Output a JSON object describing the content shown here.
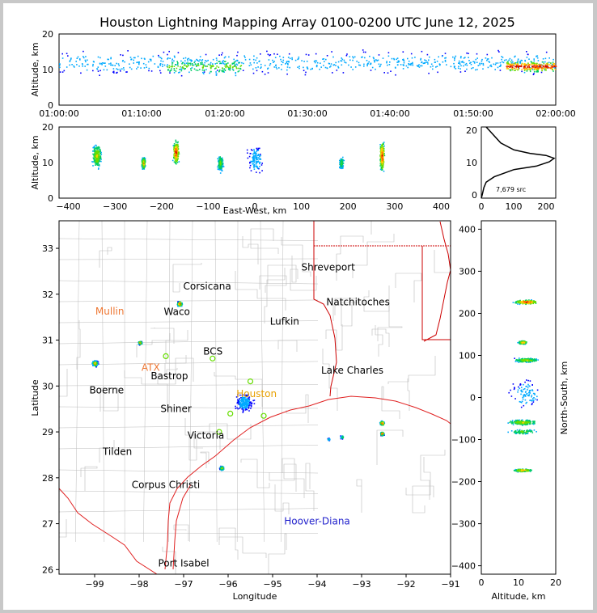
{
  "title": "Houston Lightning Mapping Array 0100-0200 UTC June 12, 2025",
  "colors": {
    "density": [
      "#0000ff",
      "#00aaff",
      "#00cc66",
      "#66dd00",
      "#ffcc00",
      "#ff6600",
      "#cc0000"
    ],
    "coast": "#e02020",
    "county": "#bbbbbb",
    "state": "#cc0000",
    "sensor": "#66dd00"
  },
  "panels": {
    "time_height": {
      "ylabel": "Altitude, km",
      "yticks": [
        "0",
        "10",
        "20"
      ],
      "xticks": [
        "01:00:00",
        "01:10:00",
        "01:20:00",
        "01:30:00",
        "01:40:00",
        "01:50:00",
        "02:00:00"
      ]
    },
    "ew_height": {
      "ylabel": "Altitude, km",
      "xlabel": "East-West, km",
      "yticks": [
        "0",
        "10",
        "20"
      ],
      "xticks": [
        "−400",
        "−300",
        "−200",
        "−100",
        "0",
        "100",
        "200",
        "300",
        "400"
      ]
    },
    "alt_hist": {
      "yticks": [
        "0",
        "10",
        "20"
      ],
      "xticks": [
        "0",
        "100",
        "200"
      ],
      "annotation": "7,679 src"
    },
    "plan": {
      "xlabel": "Longitude",
      "ylabel": "Latitude",
      "xticks": [
        "−99",
        "−98",
        "−97",
        "−96",
        "−95",
        "−94",
        "−93",
        "−92",
        "−91"
      ],
      "yticks": [
        "26",
        "27",
        "28",
        "29",
        "30",
        "31",
        "32",
        "33"
      ]
    },
    "ns_height": {
      "xlabel": "Altitude, km",
      "ylabel": "North-South, km",
      "xticks": [
        "0",
        "10",
        "20"
      ],
      "yticks": [
        "−400",
        "−300",
        "−200",
        "−100",
        "0",
        "100",
        "200",
        "300",
        "400"
      ]
    }
  },
  "cities": [
    {
      "name": "Shreveport",
      "lon": -93.75,
      "lat": 32.52,
      "color": "#000000"
    },
    {
      "name": "Corsicana",
      "lon": -96.47,
      "lat": 32.1,
      "color": "#000000"
    },
    {
      "name": "Natchitoches",
      "lon": -93.08,
      "lat": 31.76,
      "color": "#000000"
    },
    {
      "name": "Mullin",
      "lon": -98.66,
      "lat": 31.56,
      "color": "#ee7733"
    },
    {
      "name": "Waco",
      "lon": -97.15,
      "lat": 31.55,
      "color": "#000000"
    },
    {
      "name": "Lufkin",
      "lon": -94.73,
      "lat": 31.34,
      "color": "#000000"
    },
    {
      "name": "BCS",
      "lon": -96.34,
      "lat": 30.68,
      "color": "#000000"
    },
    {
      "name": "ATX",
      "lon": -97.74,
      "lat": 30.33,
      "color": "#ee7733"
    },
    {
      "name": "Bastrop",
      "lon": -97.32,
      "lat": 30.15,
      "color": "#000000"
    },
    {
      "name": "Lake Charles",
      "lon": -93.21,
      "lat": 30.27,
      "color": "#000000"
    },
    {
      "name": "Boerne",
      "lon": -98.73,
      "lat": 29.84,
      "color": "#000000"
    },
    {
      "name": "Houston",
      "lon": -95.36,
      "lat": 29.76,
      "color": "#e8a000"
    },
    {
      "name": "Shiner",
      "lon": -97.17,
      "lat": 29.43,
      "color": "#000000"
    },
    {
      "name": "Victoria",
      "lon": -96.5,
      "lat": 28.85,
      "color": "#000000"
    },
    {
      "name": "Tilden",
      "lon": -98.49,
      "lat": 28.5,
      "color": "#000000"
    },
    {
      "name": "Corpus Christi",
      "lon": -97.4,
      "lat": 27.78,
      "color": "#000000"
    },
    {
      "name": "Hoover-Diana",
      "lon": -94.0,
      "lat": 26.98,
      "color": "#2222cc"
    },
    {
      "name": "Port Isabel",
      "lon": -97.0,
      "lat": 26.07,
      "color": "#000000"
    }
  ],
  "chart_data": [
    {
      "type": "scatter",
      "panel": "time_height",
      "xlabel": "",
      "ylabel": "Altitude, km",
      "xlim": [
        "01:00:00",
        "02:00:00"
      ],
      "ylim": [
        0,
        20
      ],
      "clusters": [
        {
          "t_min": 0,
          "t_max": 60,
          "alt_center": 12,
          "alt_spread": 4,
          "intensity": 1
        },
        {
          "t_min": 13,
          "t_max": 22,
          "alt_center": 11,
          "alt_spread": 3,
          "intensity": 3
        },
        {
          "t_min": 54,
          "t_max": 60,
          "alt_center": 11,
          "alt_spread": 2,
          "intensity": 6
        }
      ]
    },
    {
      "type": "scatter",
      "panel": "ew_height",
      "xlabel": "East-West, km",
      "ylabel": "Altitude, km",
      "xlim": [
        -420,
        420
      ],
      "ylim": [
        0,
        20
      ],
      "clusters": [
        {
          "x": -340,
          "x_spread": 12,
          "alt_center": 12,
          "alt_spread": 4,
          "intensity": 4
        },
        {
          "x": -240,
          "x_spread": 5,
          "alt_center": 10,
          "alt_spread": 2,
          "intensity": 5
        },
        {
          "x": -170,
          "x_spread": 8,
          "alt_center": 13,
          "alt_spread": 4,
          "intensity": 6
        },
        {
          "x": -75,
          "x_spread": 8,
          "alt_center": 10,
          "alt_spread": 3,
          "intensity": 3
        },
        {
          "x": 0,
          "x_spread": 20,
          "alt_center": 11,
          "alt_spread": 5,
          "intensity": 1
        },
        {
          "x": 185,
          "x_spread": 6,
          "alt_center": 10,
          "alt_spread": 2,
          "intensity": 3
        },
        {
          "x": 272,
          "x_spread": 6,
          "alt_center": 12,
          "alt_spread": 5,
          "intensity": 6
        }
      ]
    },
    {
      "type": "line",
      "panel": "alt_hist",
      "xlim": [
        0,
        230
      ],
      "ylim": [
        0,
        20
      ],
      "points": [
        [
          0,
          0
        ],
        [
          3,
          1
        ],
        [
          8,
          3
        ],
        [
          15,
          4.5
        ],
        [
          40,
          6
        ],
        [
          100,
          8
        ],
        [
          170,
          9
        ],
        [
          210,
          10.2
        ],
        [
          225,
          11.2
        ],
        [
          200,
          12
        ],
        [
          150,
          12.6
        ],
        [
          100,
          13.6
        ],
        [
          60,
          15.5
        ],
        [
          40,
          17.5
        ],
        [
          25,
          19
        ],
        [
          15,
          20
        ]
      ],
      "annotation": "7,679 src"
    },
    {
      "type": "scatter",
      "panel": "plan",
      "xlabel": "Longitude",
      "ylabel": "Latitude",
      "xlim": [
        -99.8,
        -91
      ],
      "ylim": [
        25.9,
        33.6
      ],
      "clusters": [
        {
          "lon": -97.1,
          "lat": 31.8,
          "spread": 0.07,
          "intensity": 6
        },
        {
          "lon": -97.99,
          "lat": 30.95,
          "spread": 0.05,
          "intensity": 5
        },
        {
          "lon": -99.0,
          "lat": 30.5,
          "spread": 0.08,
          "intensity": 5
        },
        {
          "lon": -95.65,
          "lat": 29.65,
          "spread": 0.25,
          "intensity": 1
        },
        {
          "lon": -96.15,
          "lat": 28.22,
          "spread": 0.06,
          "intensity": 4
        },
        {
          "lon": -92.55,
          "lat": 29.2,
          "spread": 0.06,
          "intensity": 6
        },
        {
          "lon": -92.55,
          "lat": 28.97,
          "spread": 0.05,
          "intensity": 6
        },
        {
          "lon": -93.45,
          "lat": 28.9,
          "spread": 0.05,
          "intensity": 3
        },
        {
          "lon": -93.75,
          "lat": 28.85,
          "spread": 0.03,
          "intensity": 2
        }
      ]
    },
    {
      "type": "scatter",
      "panel": "ns_height",
      "xlabel": "Altitude, km",
      "ylabel": "North-South, km",
      "xlim": [
        0,
        20
      ],
      "ylim": [
        -420,
        420
      ],
      "clusters": [
        {
          "y": 228,
          "y_spread": 6,
          "alt_center": 12,
          "alt_spread": 4,
          "intensity": 6
        },
        {
          "y": 132,
          "y_spread": 5,
          "alt_center": 11,
          "alt_spread": 1.5,
          "intensity": 5
        },
        {
          "y": 90,
          "y_spread": 6,
          "alt_center": 12,
          "alt_spread": 4,
          "intensity": 4
        },
        {
          "y": 10,
          "y_spread": 40,
          "alt_center": 12,
          "alt_spread": 5,
          "intensity": 1
        },
        {
          "y": -58,
          "y_spread": 8,
          "alt_center": 11,
          "alt_spread": 5,
          "intensity": 4
        },
        {
          "y": -80,
          "y_spread": 8,
          "alt_center": 11,
          "alt_spread": 5,
          "intensity": 3
        },
        {
          "y": -172,
          "y_spread": 4,
          "alt_center": 11,
          "alt_spread": 3,
          "intensity": 5
        }
      ]
    }
  ]
}
